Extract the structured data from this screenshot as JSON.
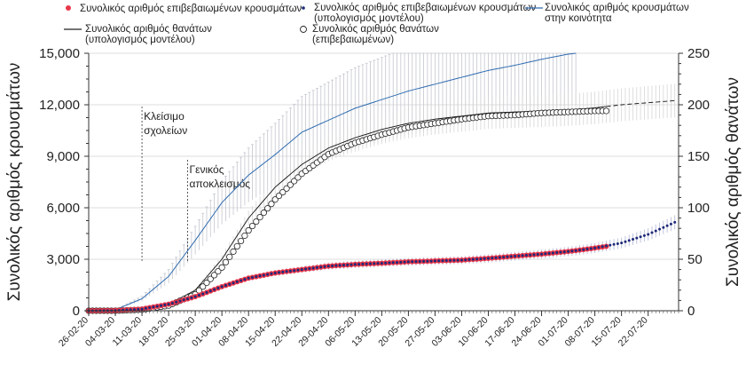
{
  "chart_data": {
    "type": "line",
    "title": "",
    "x_tick_labels": [
      "26-02-20",
      "04-03-20",
      "11-03-20",
      "18-03-20",
      "25-03-20",
      "01-04-20",
      "08-04-20",
      "15-04-20",
      "22-04-20",
      "29-04-20",
      "06-05-20",
      "13-05-20",
      "20-05-20",
      "27-05-20",
      "03-06-20",
      "10-06-20",
      "17-06-20",
      "24-06-20",
      "01-07-20",
      "08-07-20",
      "15-07-20",
      "22-07-20"
    ],
    "x_start": "2020-02-26",
    "x_end": "2020-07-30",
    "y_left": {
      "label": "Συνολικός αριθμός κρουσμάτων",
      "min": 0,
      "max": 15000,
      "ticks": [
        "0",
        "3,000",
        "6,000",
        "9,000",
        "12,000",
        "15,000"
      ]
    },
    "y_right": {
      "label": "Συνολικός αριθμός θανάτων",
      "min": 0,
      "max": 250,
      "ticks": [
        "0",
        "50",
        "100",
        "150",
        "200",
        "250"
      ]
    },
    "grid": true,
    "legend_position": "top",
    "legend": {
      "confirmed_cases": "Συνολικός αριθμός επιβεβαιωμένων κρουσμάτων",
      "model_cases_l1": "Συνολικός αριθμός επιβεβαιωμένων κρουσμάτων",
      "model_cases_l2": "(υπολογισμός μοντέλου)",
      "community_cases_l1": "Συνολικός αριθμός κρουσμάτων",
      "community_cases_l2": "στην κοινότητα",
      "model_deaths_l1": "Συνολικός αριθμός θανάτων",
      "model_deaths_l2": "(υπολογισμός μοντέλου)",
      "confirmed_deaths_l1": "Συνολικός αριθμός θανάτων",
      "confirmed_deaths_l2": "(επιβεβαιωμένων)"
    },
    "annotations": [
      {
        "date": "2020-03-11",
        "lines": [
          "Κλείσιμο",
          "σχολείων"
        ]
      },
      {
        "date": "2020-03-23",
        "lines": [
          "Γενικός",
          "αποκλεισμός"
        ]
      }
    ],
    "series": [
      {
        "name": "Συνολικός αριθμός επιβεβαιωμένων κρουσμάτων",
        "axis": "left",
        "style": "red-dots",
        "points": [
          [
            "2020-02-26",
            0
          ],
          [
            "2020-03-04",
            10
          ],
          [
            "2020-03-11",
            100
          ],
          [
            "2020-03-18",
            380
          ],
          [
            "2020-03-25",
            820
          ],
          [
            "2020-04-01",
            1400
          ],
          [
            "2020-04-08",
            1900
          ],
          [
            "2020-04-15",
            2200
          ],
          [
            "2020-04-22",
            2400
          ],
          [
            "2020-04-29",
            2600
          ],
          [
            "2020-05-06",
            2700
          ],
          [
            "2020-05-13",
            2770
          ],
          [
            "2020-05-20",
            2850
          ],
          [
            "2020-05-27",
            2900
          ],
          [
            "2020-06-03",
            2950
          ],
          [
            "2020-06-10",
            3050
          ],
          [
            "2020-06-17",
            3180
          ],
          [
            "2020-06-24",
            3300
          ],
          [
            "2020-07-01",
            3450
          ],
          [
            "2020-07-08",
            3650
          ],
          [
            "2020-07-11",
            3750
          ]
        ]
      },
      {
        "name": "Συνολικός αριθμός επιβεβαιωμένων κρουσμάτων (υπολογισμός μοντέλου)",
        "axis": "left",
        "style": "navy-dots",
        "points": [
          [
            "2020-02-26",
            0
          ],
          [
            "2020-03-04",
            10
          ],
          [
            "2020-03-11",
            100
          ],
          [
            "2020-03-18",
            380
          ],
          [
            "2020-03-25",
            820
          ],
          [
            "2020-04-01",
            1400
          ],
          [
            "2020-04-08",
            1900
          ],
          [
            "2020-04-15",
            2200
          ],
          [
            "2020-04-22",
            2400
          ],
          [
            "2020-04-29",
            2600
          ],
          [
            "2020-05-06",
            2700
          ],
          [
            "2020-05-13",
            2770
          ],
          [
            "2020-05-20",
            2850
          ],
          [
            "2020-05-27",
            2900
          ],
          [
            "2020-06-03",
            2950
          ],
          [
            "2020-06-10",
            3050
          ],
          [
            "2020-06-17",
            3180
          ],
          [
            "2020-06-24",
            3300
          ],
          [
            "2020-07-01",
            3450
          ],
          [
            "2020-07-08",
            3650
          ],
          [
            "2020-07-15",
            3950
          ],
          [
            "2020-07-22",
            4450
          ],
          [
            "2020-07-29",
            5150
          ]
        ]
      },
      {
        "name": "Συνολικός αριθμός κρουσμάτων στην κοινότητα",
        "axis": "left",
        "style": "blue-line",
        "points": [
          [
            "2020-02-26",
            0
          ],
          [
            "2020-03-04",
            60
          ],
          [
            "2020-03-11",
            700
          ],
          [
            "2020-03-18",
            2000
          ],
          [
            "2020-03-25",
            4100
          ],
          [
            "2020-04-01",
            6300
          ],
          [
            "2020-04-08",
            7900
          ],
          [
            "2020-04-15",
            9100
          ],
          [
            "2020-04-22",
            10400
          ],
          [
            "2020-04-29",
            11100
          ],
          [
            "2020-05-06",
            11800
          ],
          [
            "2020-05-13",
            12300
          ],
          [
            "2020-05-20",
            12800
          ],
          [
            "2020-05-27",
            13200
          ],
          [
            "2020-06-03",
            13600
          ],
          [
            "2020-06-10",
            14000
          ],
          [
            "2020-06-17",
            14300
          ],
          [
            "2020-06-24",
            14650
          ],
          [
            "2020-07-01",
            14950
          ],
          [
            "2020-07-03",
            15000
          ]
        ]
      },
      {
        "name": "Συνολικός αριθμός θανάτων (υπολογισμός μοντέλου)",
        "axis": "right",
        "style": "black-line",
        "points": [
          [
            "2020-02-26",
            0
          ],
          [
            "2020-03-04",
            0
          ],
          [
            "2020-03-11",
            1
          ],
          [
            "2020-03-18",
            6
          ],
          [
            "2020-03-25",
            20
          ],
          [
            "2020-04-01",
            50
          ],
          [
            "2020-04-08",
            90
          ],
          [
            "2020-04-15",
            120
          ],
          [
            "2020-04-22",
            142
          ],
          [
            "2020-04-29",
            158
          ],
          [
            "2020-05-06",
            168
          ],
          [
            "2020-05-13",
            176
          ],
          [
            "2020-05-20",
            182
          ],
          [
            "2020-05-27",
            186
          ],
          [
            "2020-06-03",
            189
          ],
          [
            "2020-06-10",
            192
          ],
          [
            "2020-06-17",
            193
          ],
          [
            "2020-06-24",
            194
          ],
          [
            "2020-07-01",
            195
          ],
          [
            "2020-07-08",
            197
          ],
          [
            "2020-07-15",
            200
          ],
          [
            "2020-07-22",
            202
          ],
          [
            "2020-07-29",
            204
          ]
        ]
      },
      {
        "name": "Συνολικός αριθμός θανάτων (επιβεβαιωμένων)",
        "axis": "right",
        "style": "open-circles",
        "points": [
          [
            "2020-02-26",
            0
          ],
          [
            "2020-03-04",
            0
          ],
          [
            "2020-03-11",
            1
          ],
          [
            "2020-03-18",
            5
          ],
          [
            "2020-03-25",
            16
          ],
          [
            "2020-04-01",
            42
          ],
          [
            "2020-04-08",
            78
          ],
          [
            "2020-04-15",
            108
          ],
          [
            "2020-04-22",
            133
          ],
          [
            "2020-04-29",
            152
          ],
          [
            "2020-05-06",
            163
          ],
          [
            "2020-05-13",
            171
          ],
          [
            "2020-05-20",
            178
          ],
          [
            "2020-05-27",
            182
          ],
          [
            "2020-06-03",
            186
          ],
          [
            "2020-06-10",
            189
          ],
          [
            "2020-06-17",
            190
          ],
          [
            "2020-06-24",
            192
          ],
          [
            "2020-07-01",
            193
          ],
          [
            "2020-07-08",
            194
          ],
          [
            "2020-07-11",
            194
          ]
        ]
      }
    ]
  }
}
